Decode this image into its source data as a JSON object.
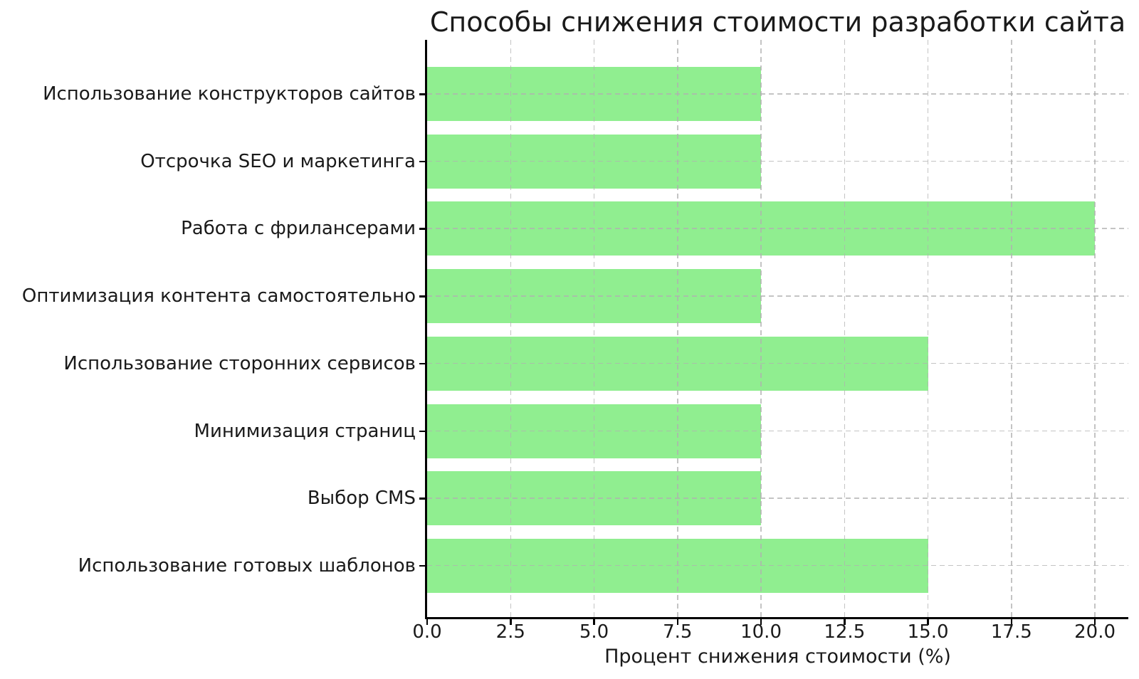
{
  "chart_data": {
    "type": "bar",
    "orientation": "horizontal",
    "title": "Способы снижения стоимости разработки сайта",
    "xlabel": "Процент снижения стоимости (%)",
    "ylabel": "",
    "categories": [
      "Использование конструкторов сайтов",
      "Отсрочка SEO и маркетинга",
      "Работа с фрилансерами",
      "Оптимизация контента самостоятельно",
      "Использование сторонних сервисов",
      "Минимизация страниц",
      "Выбор CMS",
      "Использование готовых шаблонов"
    ],
    "values": [
      10,
      10,
      20,
      10,
      15,
      10,
      10,
      15
    ],
    "x_tick_labels": [
      "0.0",
      "2.5",
      "5.0",
      "7.5",
      "10.0",
      "12.5",
      "15.0",
      "17.5",
      "20.0"
    ],
    "x_tick_values": [
      0,
      2.5,
      5,
      7.5,
      10,
      12.5,
      15,
      17.5,
      20
    ],
    "xlim": [
      0,
      21
    ],
    "grid": "dashed, both axes, drawn above bars",
    "legend": "none",
    "colors": {
      "bar": "#90EE90",
      "grid": "#b0b0b0",
      "axis": "#000000",
      "text": "#1a1a1a",
      "background": "#ffffff"
    }
  }
}
